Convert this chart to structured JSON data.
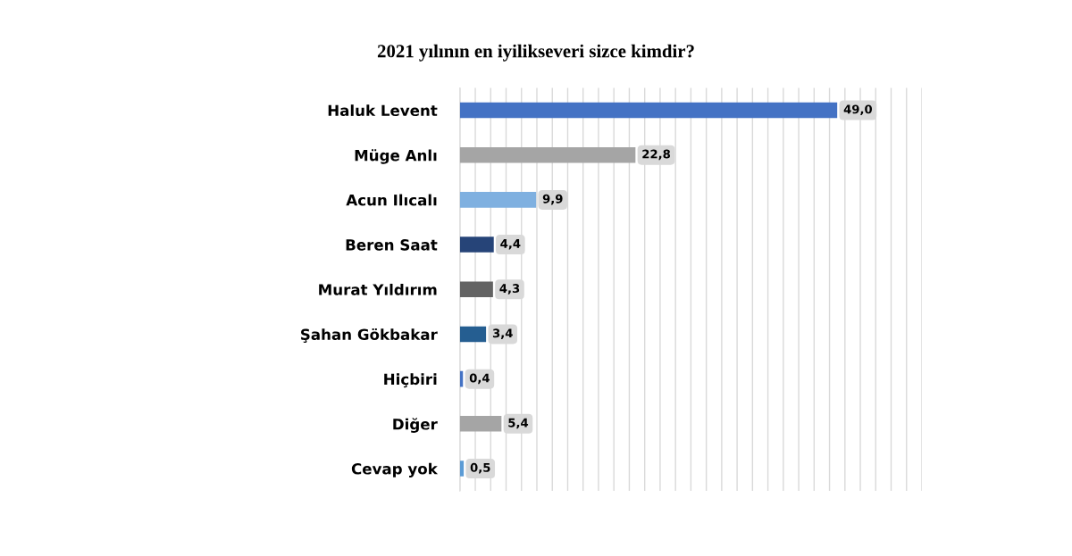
{
  "chart_data": {
    "type": "bar",
    "orientation": "horizontal",
    "title": "2021 yılının en iyilikseveri sizce kimdir?",
    "categories": [
      "Haluk Levent",
      "Müge Anlı",
      "Acun Ilıcalı",
      "Beren Saat",
      "Murat Yıldırım",
      "Şahan Gökbakar",
      "Hiçbiri",
      "Diğer",
      "Cevap yok"
    ],
    "values": [
      49.0,
      22.8,
      9.9,
      4.4,
      4.3,
      3.4,
      0.4,
      5.4,
      0.5
    ],
    "value_labels": [
      "49,0",
      "22,8",
      "9,9",
      "4,4",
      "4,3",
      "3,4",
      "0,4",
      "5,4",
      "0,5"
    ],
    "colors": [
      "#4472c4",
      "#a5a5a5",
      "#7fb0e0",
      "#264478",
      "#636363",
      "#255e91",
      "#4472c4",
      "#a5a5a5",
      "#5b9bd5"
    ],
    "xlim": [
      0,
      60
    ],
    "xticks": [
      {
        "value": 0,
        "label": null
      },
      {
        "value": 2,
        "label": null
      },
      {
        "value": 4,
        "label": null
      },
      {
        "value": 6,
        "label": null
      },
      {
        "value": 8,
        "label": null
      },
      {
        "value": 10,
        "label": null
      },
      {
        "value": 12,
        "label": null
      },
      {
        "value": 14,
        "label": null
      },
      {
        "value": 16,
        "label": null
      },
      {
        "value": 18,
        "label": null
      },
      {
        "value": 20,
        "label": null
      },
      {
        "value": 22,
        "label": null
      },
      {
        "value": 24,
        "label": null
      },
      {
        "value": 26,
        "label": null
      },
      {
        "value": 28,
        "label": null
      },
      {
        "value": 30,
        "label": null
      },
      {
        "value": 32,
        "label": null
      },
      {
        "value": 34,
        "label": null
      },
      {
        "value": 36,
        "label": null
      },
      {
        "value": 38,
        "label": null
      },
      {
        "value": 40,
        "label": null
      },
      {
        "value": 42,
        "label": null
      },
      {
        "value": 44,
        "label": null
      },
      {
        "value": 46,
        "label": null
      },
      {
        "value": 48,
        "label": null
      },
      {
        "value": 50,
        "label": null
      },
      {
        "value": 52,
        "label": null
      },
      {
        "value": 54,
        "label": null
      },
      {
        "value": 56,
        "label": null
      },
      {
        "value": 58,
        "label": null
      },
      {
        "value": 60,
        "label": null
      }
    ],
    "grid": "x",
    "tick_labels": "y"
  }
}
